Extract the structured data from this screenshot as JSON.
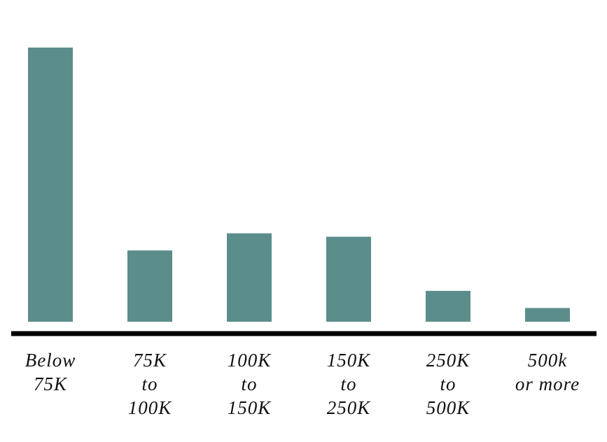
{
  "chart_data": {
    "type": "bar",
    "categories": [
      "Below\n75K",
      "75K\nto\n100K",
      "100K\nto\n150K",
      "150K\nto\n250K",
      "250K\nto\n500K",
      "500k\nor more"
    ],
    "values": [
      40,
      10.4,
      12.9,
      12.4,
      4.5,
      2
    ],
    "color": "#5b8e8b",
    "ylim": [
      0,
      45
    ],
    "grid": false
  }
}
